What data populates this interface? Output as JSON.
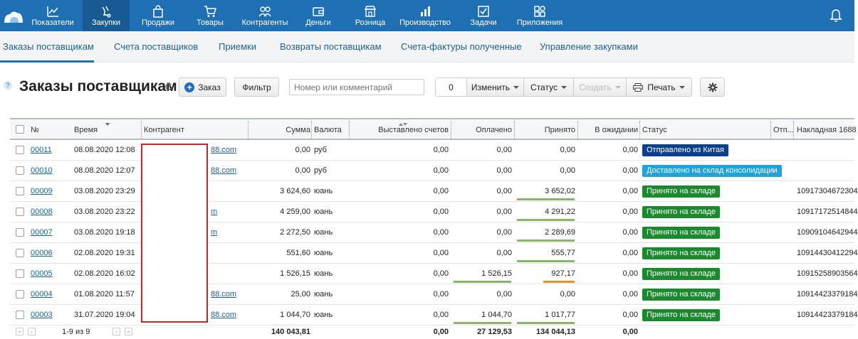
{
  "nav": {
    "items": [
      {
        "label": "Показатели",
        "icon": "chart-line-icon"
      },
      {
        "label": "Закупки",
        "icon": "purchases-icon",
        "active": true
      },
      {
        "label": "Продажи",
        "icon": "bag-icon"
      },
      {
        "label": "Товары",
        "icon": "cart-icon"
      },
      {
        "label": "Контрагенты",
        "icon": "people-icon"
      },
      {
        "label": "Деньги",
        "icon": "wallet-icon"
      },
      {
        "label": "Розница",
        "icon": "shop-icon"
      },
      {
        "label": "Производство",
        "icon": "bar-chart-icon"
      },
      {
        "label": "Задачи",
        "icon": "checkbox-icon"
      },
      {
        "label": "Приложения",
        "icon": "apps-icon"
      }
    ]
  },
  "subnav": {
    "items": [
      {
        "label": "Заказы поставщикам",
        "active": true
      },
      {
        "label": "Счета поставщиков"
      },
      {
        "label": "Приемки"
      },
      {
        "label": "Возвраты поставщикам"
      },
      {
        "label": "Счета-фактуры полученные"
      },
      {
        "label": "Управление закупками"
      }
    ]
  },
  "toolbar": {
    "help": "?",
    "title": "Заказы поставщикам",
    "add_label": "Заказ",
    "filter_label": "Фильтр",
    "search_placeholder": "Номер или комментарий",
    "selected_count": "0",
    "change_label": "Изменить",
    "status_label": "Статус",
    "create_label": "Создать",
    "print_label": "Печать"
  },
  "table": {
    "headers": {
      "num": "№",
      "time": "Время",
      "contractor": "Контрагент",
      "sum": "Сумма",
      "currency": "Валюта",
      "invoiced": "Выставлено счетов",
      "paid": "Оплачено",
      "received": "Принято",
      "pending": "В ожидании",
      "status": "Статус",
      "shipped": "Отп...",
      "waybill": "Накладная 1688"
    },
    "rows": [
      {
        "num": "00011",
        "time": "08.08.2020 12:08",
        "contractor_tail": "88.com",
        "sum": "0,00",
        "currency": "руб",
        "invoiced": "0,00",
        "paid": "0,00",
        "received": "0,00",
        "pending": "0,00",
        "status": "Отправлено из Китая",
        "waybill": ""
      },
      {
        "num": "00010",
        "time": "08.08.2020 12:07",
        "contractor_tail": "88.com",
        "sum": "0,00",
        "currency": "руб",
        "invoiced": "0,00",
        "paid": "0,00",
        "received": "0,00",
        "pending": "0,00",
        "status": "Доставлено на склад консолидации",
        "waybill": ""
      },
      {
        "num": "00009",
        "time": "03.08.2020 23:29",
        "contractor_tail": "",
        "sum": "3 624,60",
        "currency": "юань",
        "invoiced": "0,00",
        "paid": "0,00",
        "received": "3 652,02",
        "pending": "0,00",
        "status": "Принято на складе",
        "waybill": "10917304672304"
      },
      {
        "num": "00008",
        "time": "03.08.2020 23:22",
        "contractor_tail": "m",
        "sum": "4 259,00",
        "currency": "юань",
        "invoiced": "0,00",
        "paid": "0,00",
        "received": "4 291,22",
        "pending": "0,00",
        "status": "Принято на складе",
        "waybill": "10917172514844"
      },
      {
        "num": "00007",
        "time": "03.08.2020 19:18",
        "contractor_tail": "m",
        "sum": "2 272,50",
        "currency": "юань",
        "invoiced": "0,00",
        "paid": "0,00",
        "received": "2 289,69",
        "pending": "0,00",
        "status": "Принято на складе",
        "waybill": "10909104642944"
      },
      {
        "num": "00006",
        "time": "02.08.2020 19:31",
        "contractor_tail": "",
        "sum": "551,60",
        "currency": "юань",
        "invoiced": "0,00",
        "paid": "0,00",
        "received": "555,77",
        "pending": "0,00",
        "status": "Принято на складе",
        "waybill": "10914430412294"
      },
      {
        "num": "00005",
        "time": "02.08.2020 16:02",
        "contractor_tail": "",
        "sum": "1 526,15",
        "currency": "юань",
        "invoiced": "0,00",
        "paid": "1 526,15",
        "received": "927,17",
        "pending": "0,00",
        "status": "Принято на складе",
        "waybill": "10915258903564"
      },
      {
        "num": "00004",
        "time": "01.08.2020 11:57",
        "contractor_tail": "88.com",
        "sum": "25,00",
        "currency": "юань",
        "invoiced": "0,00",
        "paid": "0,00",
        "received": "0,00",
        "pending": "0,00",
        "status": "Принято на складе",
        "waybill": "10914423379184"
      },
      {
        "num": "00003",
        "time": "31.07.2020 19:04",
        "contractor_tail": "88.com",
        "sum": "1 044,70",
        "currency": "юань",
        "invoiced": "0,00",
        "paid": "1 044,70",
        "received": "1 017,77",
        "pending": "0,00",
        "status": "Принято на складе",
        "waybill": "10914423379184"
      }
    ]
  },
  "footer": {
    "range": "1-9 из 9",
    "sum_total": "140 043,81",
    "invoiced_total": "0,00",
    "paid_total": "27 129,53",
    "received_total": "134 044,13",
    "pending_total": "0,00"
  },
  "colors": {
    "topbar": "#1e6fb3",
    "status_shipped": "#0d3f8f",
    "status_consolidation": "#1ea3dc",
    "status_accepted": "#1b8a2e",
    "bar_green": "#8bb46a",
    "bar_orange": "#e8912c"
  }
}
